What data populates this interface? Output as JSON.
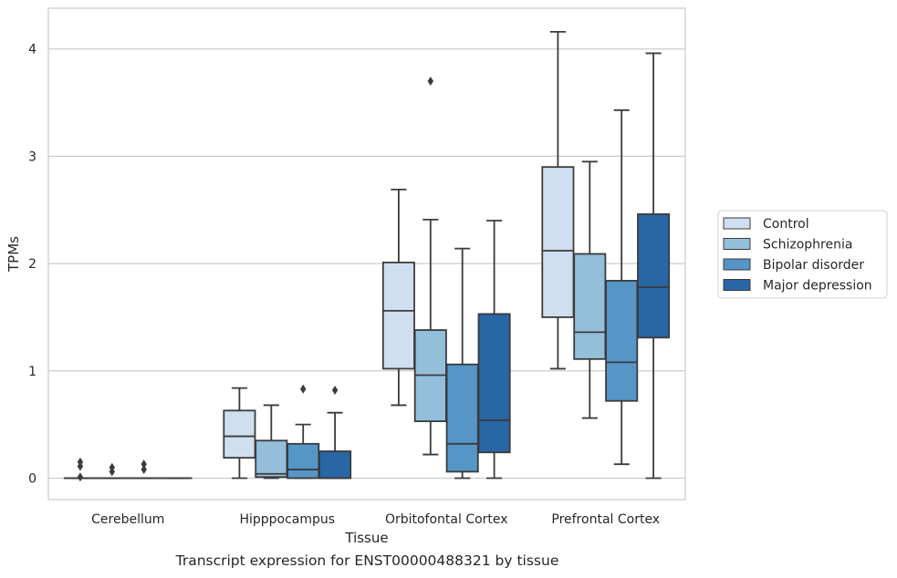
{
  "chart_data": {
    "type": "box",
    "title": "",
    "xlabel": "Tissue",
    "ylabel": "TPMs",
    "caption": "Transcript expression for ENST00000488321 by tissue",
    "ylim": [
      -0.2,
      4.38
    ],
    "yticks": [
      0,
      1,
      2,
      3,
      4
    ],
    "grid": "horizontal",
    "legend_position": "right",
    "categories": [
      "Cerebellum",
      "Hipppocampus",
      "Orbitofontal Cortex",
      "Prefrontal Cortex"
    ],
    "series": [
      {
        "name": "Control",
        "color": "#cfdff0",
        "boxes": [
          {
            "min": 0,
            "q1": 0,
            "median": 0,
            "q3": 0,
            "max": 0,
            "outliers": [
              0.01,
              0.11,
              0.15
            ]
          },
          {
            "min": 0,
            "q1": 0.19,
            "median": 0.39,
            "q3": 0.63,
            "max": 0.84,
            "outliers": []
          },
          {
            "min": 0.68,
            "q1": 1.02,
            "median": 1.56,
            "q3": 2.01,
            "max": 2.69,
            "outliers": []
          },
          {
            "min": 1.02,
            "q1": 1.5,
            "median": 2.12,
            "q3": 2.9,
            "max": 4.16,
            "outliers": []
          }
        ]
      },
      {
        "name": "Schizophrenia",
        "color": "#93bfdb",
        "boxes": [
          {
            "min": 0,
            "q1": 0,
            "median": 0,
            "q3": 0,
            "max": 0,
            "outliers": [
              0.06,
              0.1
            ]
          },
          {
            "min": 0,
            "q1": 0.01,
            "median": 0.04,
            "q3": 0.35,
            "max": 0.68,
            "outliers": []
          },
          {
            "min": 0.22,
            "q1": 0.53,
            "median": 0.96,
            "q3": 1.38,
            "max": 2.41,
            "outliers": [
              3.7
            ]
          },
          {
            "min": 0.56,
            "q1": 1.11,
            "median": 1.36,
            "q3": 2.09,
            "max": 2.95,
            "outliers": []
          }
        ]
      },
      {
        "name": "Bipolar disorder",
        "color": "#5596c7",
        "boxes": [
          {
            "min": 0,
            "q1": 0,
            "median": 0,
            "q3": 0,
            "max": 0,
            "outliers": [
              0.08,
              0.13
            ]
          },
          {
            "min": 0,
            "q1": 0,
            "median": 0.08,
            "q3": 0.32,
            "max": 0.5,
            "outliers": [
              0.83
            ]
          },
          {
            "min": 0,
            "q1": 0.06,
            "median": 0.32,
            "q3": 1.06,
            "max": 2.14,
            "outliers": []
          },
          {
            "min": 0.13,
            "q1": 0.72,
            "median": 1.08,
            "q3": 1.84,
            "max": 3.43,
            "outliers": []
          }
        ]
      },
      {
        "name": "Major depression",
        "color": "#2866a5",
        "boxes": [
          {
            "min": 0,
            "q1": 0,
            "median": 0,
            "q3": 0,
            "max": 0,
            "outliers": []
          },
          {
            "min": 0,
            "q1": 0,
            "median": 0,
            "q3": 0.25,
            "max": 0.61,
            "outliers": [
              0.82
            ]
          },
          {
            "min": 0,
            "q1": 0.24,
            "median": 0.54,
            "q3": 1.53,
            "max": 2.4,
            "outliers": []
          },
          {
            "min": 0,
            "q1": 1.31,
            "median": 1.78,
            "q3": 2.46,
            "max": 3.96,
            "outliers": []
          }
        ]
      }
    ]
  }
}
